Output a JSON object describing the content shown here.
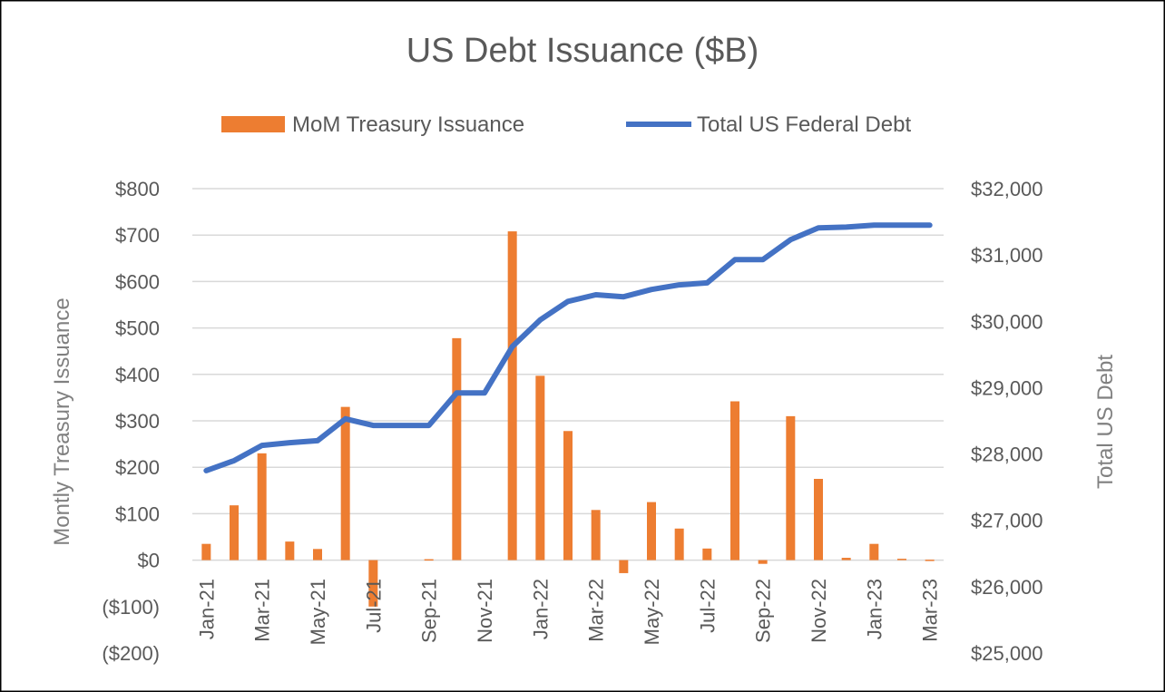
{
  "chart_data": {
    "type": "bar",
    "title": "US Debt Issuance ($B)",
    "categories": [
      "Jan-21",
      "Feb-21",
      "Mar-21",
      "Apr-21",
      "May-21",
      "Jun-21",
      "Jul-21",
      "Aug-21",
      "Sep-21",
      "Oct-21",
      "Nov-21",
      "Dec-21",
      "Jan-22",
      "Feb-22",
      "Mar-22",
      "Apr-22",
      "May-22",
      "Jun-22",
      "Jul-22",
      "Aug-22",
      "Sep-22",
      "Oct-22",
      "Nov-22",
      "Dec-22",
      "Jan-23",
      "Feb-23",
      "Mar-23"
    ],
    "x_tick_labels": [
      "Jan-21",
      "Mar-21",
      "May-21",
      "Jul-21",
      "Sep-21",
      "Nov-21",
      "Jan-22",
      "Mar-22",
      "May-22",
      "Jul-22",
      "Sep-22",
      "Nov-22",
      "Jan-23",
      "Mar-23"
    ],
    "series": [
      {
        "name": "MoM Treasury Issuance",
        "type": "bar",
        "axis": "left",
        "color": "#ed7d31",
        "values": [
          35,
          118,
          230,
          40,
          24,
          330,
          -100,
          0,
          2,
          478,
          0,
          708,
          397,
          278,
          108,
          -28,
          125,
          68,
          25,
          342,
          -8,
          310,
          175,
          5,
          35,
          3,
          1
        ]
      },
      {
        "name": "Total US Federal Debt",
        "type": "line",
        "axis": "right",
        "color": "#4472c4",
        "values": [
          27750,
          27900,
          28130,
          28170,
          28200,
          28530,
          28430,
          28430,
          28430,
          28920,
          28920,
          29620,
          30020,
          30300,
          30400,
          30370,
          30480,
          30550,
          30580,
          30930,
          30930,
          31230,
          31410,
          31420,
          31450,
          31450,
          31450
        ]
      }
    ],
    "left_axis": {
      "title": "Montly Treasury Issuance",
      "min": -200,
      "max": 800,
      "step": 100,
      "tick_labels": [
        "($200)",
        "($100)",
        "$0",
        "$100",
        "$200",
        "$300",
        "$400",
        "$500",
        "$600",
        "$700",
        "$800"
      ],
      "negative_label_color": "#ff0000"
    },
    "right_axis": {
      "title": "Total US Debt",
      "min": 25000,
      "max": 32000,
      "step": 1000,
      "tick_labels": [
        "$25,000",
        "$26,000",
        "$27,000",
        "$28,000",
        "$29,000",
        "$30,000",
        "$31,000",
        "$32,000"
      ]
    },
    "grid": true,
    "legend_position": "top"
  }
}
